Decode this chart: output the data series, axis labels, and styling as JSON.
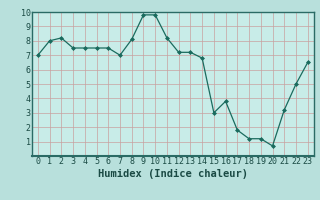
{
  "x": [
    0,
    1,
    2,
    3,
    4,
    5,
    6,
    7,
    8,
    9,
    10,
    11,
    12,
    13,
    14,
    15,
    16,
    17,
    18,
    19,
    20,
    21,
    22,
    23
  ],
  "y": [
    7.0,
    8.0,
    8.2,
    7.5,
    7.5,
    7.5,
    7.5,
    7.0,
    8.1,
    9.8,
    9.8,
    8.2,
    7.2,
    7.2,
    6.8,
    3.0,
    3.8,
    1.8,
    1.2,
    1.2,
    0.7,
    3.2,
    5.0,
    6.5
  ],
  "line_color": "#1a6b5e",
  "marker": "D",
  "marker_size": 2.0,
  "bg_color": "#b8e0dc",
  "plot_bg_color": "#c8ece8",
  "grid_color": "#c8a0a0",
  "xlabel": "Humidex (Indice chaleur)",
  "xlim_min": -0.5,
  "xlim_max": 23.5,
  "ylim_min": 0,
  "ylim_max": 10,
  "xticks": [
    0,
    1,
    2,
    3,
    4,
    5,
    6,
    7,
    8,
    9,
    10,
    11,
    12,
    13,
    14,
    15,
    16,
    17,
    18,
    19,
    20,
    21,
    22,
    23
  ],
  "yticks": [
    1,
    2,
    3,
    4,
    5,
    6,
    7,
    8,
    9,
    10
  ],
  "tick_color": "#1a4a44",
  "xlabel_color": "#1a4a44",
  "label_fontsize": 7.5,
  "tick_fontsize": 6.0,
  "linewidth": 0.9,
  "bottom_bar_color": "#2a6b65",
  "spine_color": "#2a6b65"
}
